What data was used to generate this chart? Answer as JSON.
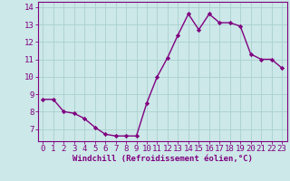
{
  "x": [
    0,
    1,
    2,
    3,
    4,
    5,
    6,
    7,
    8,
    9,
    10,
    11,
    12,
    13,
    14,
    15,
    16,
    17,
    18,
    19,
    20,
    21,
    22,
    23
  ],
  "y": [
    8.7,
    8.7,
    8.0,
    7.9,
    7.6,
    7.1,
    6.7,
    6.6,
    6.6,
    6.6,
    8.5,
    10.0,
    11.1,
    12.4,
    13.6,
    12.7,
    13.6,
    13.1,
    13.1,
    12.9,
    11.3,
    11.0,
    11.0,
    10.5
  ],
  "line_color": "#800080",
  "marker": "D",
  "marker_size": 2.2,
  "bg_color": "#cce8e8",
  "grid_color": "#aad0d0",
  "xlabel": "Windchill (Refroidissement éolien,°C)",
  "xlim": [
    -0.5,
    23.5
  ],
  "ylim": [
    6.3,
    14.3
  ],
  "yticks": [
    7,
    8,
    9,
    10,
    11,
    12,
    13,
    14
  ],
  "xticks": [
    0,
    1,
    2,
    3,
    4,
    5,
    6,
    7,
    8,
    9,
    10,
    11,
    12,
    13,
    14,
    15,
    16,
    17,
    18,
    19,
    20,
    21,
    22,
    23
  ],
  "axis_color": "#800080",
  "tick_color": "#800080",
  "xlabel_color": "#800080",
  "linewidth": 1.0,
  "tick_fontsize": 6.5,
  "xlabel_fontsize": 6.5
}
